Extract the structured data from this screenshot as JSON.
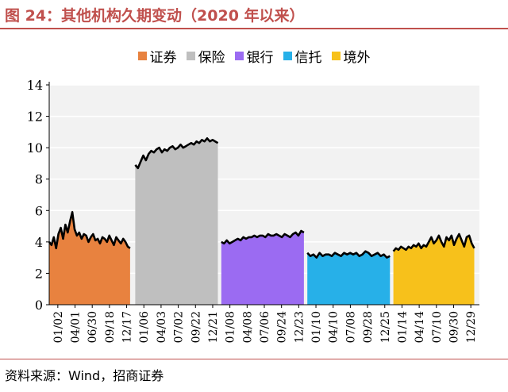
{
  "figure": {
    "title": "图 24：其他机构久期变动（2020 年以来）",
    "source": "资料来源：Wind，招商证券"
  },
  "colors": {
    "title": "#c0504d",
    "line": "#000000",
    "grid": "#ffffff",
    "plot_bg": "#f2f2f2"
  },
  "chart_data": {
    "type": "area",
    "title": "",
    "xlabel": "",
    "ylabel": "",
    "ylim": [
      0,
      14
    ],
    "yticks": [
      0,
      2,
      4,
      6,
      8,
      10,
      12,
      14
    ],
    "grid": true,
    "legend_position": "top",
    "x_tick_labels": [
      "01/02",
      "04/01",
      "06/30",
      "09/18",
      "12/17",
      "01/06",
      "04/03",
      "07/02",
      "09/22",
      "12/21",
      "01/08",
      "04/08",
      "07/06",
      "09/24",
      "12/23",
      "01/10",
      "04/10",
      "07/08",
      "09/28",
      "12/25",
      "01/14",
      "04/14",
      "07/10",
      "09/30",
      "12/29"
    ],
    "series": [
      {
        "name": "证券",
        "color": "#e8823f",
        "tick_start": 0,
        "tick_end": 4.2,
        "values": [
          4.0,
          3.8,
          4.3,
          3.6,
          4.5,
          4.9,
          4.2,
          5.1,
          4.6,
          5.3,
          5.9,
          4.8,
          4.4,
          4.6,
          4.2,
          4.5,
          4.4,
          4.0,
          4.3,
          4.5,
          4.1,
          4.2,
          3.9,
          4.3,
          4.2,
          4.0,
          4.4,
          4.1,
          3.8,
          4.3,
          4.1,
          3.9,
          4.2,
          4.0,
          3.7,
          3.6
        ]
      },
      {
        "name": "保险",
        "color": "#bfbfbf",
        "tick_start": 5,
        "tick_end": 9.3,
        "values": [
          8.9,
          8.7,
          9.1,
          9.5,
          9.2,
          9.6,
          9.8,
          9.7,
          9.9,
          10.0,
          9.7,
          9.9,
          9.8,
          10.0,
          10.1,
          9.9,
          10.0,
          10.2,
          10.0,
          10.1,
          10.2,
          10.3,
          10.2,
          10.4,
          10.3,
          10.5,
          10.4,
          10.6,
          10.4,
          10.5,
          10.4,
          10.3
        ]
      },
      {
        "name": "银行",
        "color": "#9b6bf2",
        "tick_start": 10,
        "tick_end": 14.3,
        "values": [
          4.0,
          3.9,
          4.1,
          3.9,
          4.0,
          4.1,
          4.2,
          4.1,
          4.3,
          4.2,
          4.3,
          4.3,
          4.4,
          4.3,
          4.4,
          4.4,
          4.3,
          4.5,
          4.4,
          4.4,
          4.5,
          4.4,
          4.3,
          4.5,
          4.4,
          4.3,
          4.5,
          4.6,
          4.4,
          4.7,
          4.6
        ]
      },
      {
        "name": "信托",
        "color": "#27b0e8",
        "tick_start": 15,
        "tick_end": 19.3,
        "values": [
          3.3,
          3.1,
          3.2,
          3.0,
          3.3,
          3.1,
          3.2,
          3.2,
          3.1,
          3.3,
          3.2,
          3.1,
          3.3,
          3.2,
          3.3,
          3.2,
          3.3,
          3.1,
          3.2,
          3.4,
          3.3,
          3.1,
          3.2,
          3.3,
          3.1,
          3.2,
          3.0,
          3.1
        ]
      },
      {
        "name": "境外",
        "color": "#f7c11b",
        "tick_start": 20,
        "tick_end": 24.2,
        "values": [
          3.4,
          3.6,
          3.5,
          3.7,
          3.6,
          3.5,
          3.7,
          3.6,
          3.8,
          3.7,
          3.9,
          3.6,
          3.8,
          3.7,
          4.0,
          4.3,
          3.9,
          4.1,
          4.4,
          4.0,
          3.7,
          4.3,
          4.1,
          4.4,
          3.8,
          4.2,
          4.5,
          4.1,
          3.7,
          4.3,
          4.4,
          3.9,
          3.6
        ]
      }
    ]
  }
}
